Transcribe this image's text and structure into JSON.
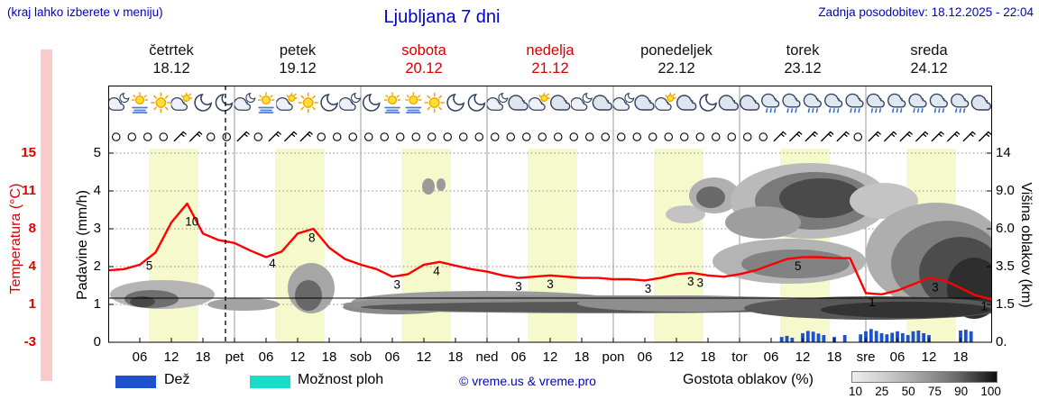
{
  "header": {
    "hint": "(kraj lahko izberete v meniju)",
    "title": "Ljubljana 7 dni",
    "updated": "Zadnja posodobitev: 18.12.2025 - 22:04"
  },
  "colors": {
    "accent_blue": "#0000cd",
    "temp_red": "#e00000",
    "temp_line": "#ff0000",
    "rain_blue": "#1d52cc",
    "showers_cyan": "#17dcc8",
    "day_band": "#f6f9cb",
    "holiday_red": "#d40000"
  },
  "axes": {
    "temp_label": "Temperatura (°C)",
    "temp_ticks": [
      "15",
      "11",
      "8",
      "4",
      "1",
      "-3"
    ],
    "temp_tick_values": [
      15,
      11,
      8,
      4,
      1,
      -3
    ],
    "precip_label": "Padavine (mm/h)",
    "precip_ticks": [
      "5",
      "4",
      "3",
      "2",
      "1",
      "0"
    ],
    "cloud_label": "Višina oblakov (km)",
    "cloud_ticks": [
      "14",
      "9.0",
      "6.0",
      "3.5",
      "1.5",
      "0."
    ]
  },
  "days": [
    {
      "name": "četrtek",
      "date": "18.12",
      "holiday": false
    },
    {
      "name": "petek",
      "date": "19.12",
      "holiday": false
    },
    {
      "name": "sobota",
      "date": "20.12",
      "holiday": true
    },
    {
      "name": "nedelja",
      "date": "21.12",
      "holiday": true
    },
    {
      "name": "ponedeljek",
      "date": "22.12",
      "holiday": false
    },
    {
      "name": "torek",
      "date": "23.12",
      "holiday": false
    },
    {
      "name": "sreda",
      "date": "24.12",
      "holiday": false
    }
  ],
  "xaxis": [
    "06",
    "12",
    "18",
    "pet",
    "06",
    "12",
    "18",
    "sob",
    "06",
    "12",
    "18",
    "ned",
    "06",
    "12",
    "18",
    "pon",
    "06",
    "12",
    "18",
    "tor",
    "06",
    "12",
    "18",
    "sre",
    "06",
    "12",
    "18"
  ],
  "legend": {
    "rain": "Dež",
    "showers": "Možnost ploh",
    "credit": "© vreme.us & vreme.pro",
    "cloud_density": "Gostota oblakov (%)",
    "density_ticks": [
      "10",
      "25",
      "50",
      "75",
      "90",
      "100"
    ]
  },
  "chart_data": {
    "type": "line",
    "title": "Ljubljana 7 dni",
    "x_hours_range": [
      0,
      168
    ],
    "precip_axis_range": [
      0,
      5
    ],
    "temp_axis_ticks_c": [
      15,
      11,
      8,
      4,
      1,
      -3
    ],
    "cloud_axis_ticks_km": [
      14,
      9.0,
      6.0,
      3.5,
      1.5,
      0
    ],
    "temperature": {
      "step_hours": 3,
      "values": [
        3.7,
        3.8,
        4.2,
        5.5,
        8.5,
        10,
        7.5,
        6.8,
        6.5,
        5.7,
        5.0,
        5.6,
        7.5,
        8.0,
        6.0,
        4.8,
        4.2,
        3.8,
        3.2,
        3.4,
        4.2,
        4.5,
        4.1,
        3.8,
        3.6,
        3.3,
        3.1,
        3.2,
        3.3,
        3.2,
        3.1,
        3.1,
        3.0,
        3.0,
        2.9,
        3.1,
        3.4,
        3.5,
        3.3,
        3.2,
        3.4,
        3.7,
        4.2,
        4.8,
        5.0,
        5.0,
        4.9,
        4.9,
        1.9,
        1.8,
        2.1,
        2.6,
        3.1,
        2.9,
        2.3,
        1.7,
        1.4
      ]
    },
    "temp_point_labels": [
      {
        "t": 2.6,
        "text": "5"
      },
      {
        "t": 5.3,
        "text": "10"
      },
      {
        "t": 10.4,
        "text": "4"
      },
      {
        "t": 12.9,
        "text": "8"
      },
      {
        "t": 18.3,
        "text": "3"
      },
      {
        "t": 20.8,
        "text": "4"
      },
      {
        "t": 26.0,
        "text": "3"
      },
      {
        "t": 28.0,
        "text": "3"
      },
      {
        "t": 34.2,
        "text": "3"
      },
      {
        "t": 36.9,
        "text": "3"
      },
      {
        "t": 37.5,
        "text": "3"
      },
      {
        "t": 43.7,
        "text": "5"
      },
      {
        "t": 48.4,
        "text": "1"
      },
      {
        "t": 52.4,
        "text": "3"
      },
      {
        "t": 55.5,
        "text": "1"
      }
    ],
    "precip_bars_mm": [
      [
        128,
        0.14
      ],
      [
        129,
        0.17
      ],
      [
        130,
        0.12
      ],
      [
        132,
        0.24
      ],
      [
        133,
        0.3
      ],
      [
        134,
        0.28
      ],
      [
        135,
        0.23
      ],
      [
        136,
        0.19
      ],
      [
        138,
        0.14
      ],
      [
        140,
        0.19
      ],
      [
        143,
        0.21
      ],
      [
        144,
        0.29
      ],
      [
        145,
        0.35
      ],
      [
        146,
        0.3
      ],
      [
        147,
        0.24
      ],
      [
        148,
        0.21
      ],
      [
        149,
        0.25
      ],
      [
        150,
        0.29
      ],
      [
        151,
        0.24
      ],
      [
        152,
        0.19
      ],
      [
        153,
        0.29
      ],
      [
        154,
        0.31
      ],
      [
        155,
        0.24
      ],
      [
        156,
        0.19
      ],
      [
        162,
        0.31
      ],
      [
        163,
        0.33
      ],
      [
        164,
        0.29
      ]
    ],
    "icons": [
      "cloud-moon",
      "fog-sun",
      "sun",
      "cloud-sun",
      "moon",
      "moon",
      "cloud-moon",
      "fog-sun",
      "cloud-sun",
      "sun",
      "moon",
      "cloud-moon",
      "moon",
      "fog-sun",
      "fog-sun",
      "sun",
      "moon",
      "moon",
      "cloud-moon",
      "cloud",
      "cloud-sun",
      "cloud",
      "cloud-moon",
      "cloud",
      "cloud-moon",
      "cloud",
      "cloud-sun",
      "cloud",
      "moon",
      "cloud",
      "cloud",
      "cloud-rain",
      "cloud-rain",
      "cloud-rain",
      "cloud-rain",
      "cloud-rain",
      "cloud-rain",
      "cloud-rain",
      "cloud-rain",
      "cloud-rain",
      "cloud-rain",
      "cloud"
    ],
    "wind": [
      "calm",
      "calm",
      "calm",
      "calm",
      "barb",
      "barb",
      "calm",
      "calm",
      "barb",
      "calm",
      "barb",
      "barb",
      "barb",
      "calm",
      "calm",
      "calm",
      "calm",
      "calm",
      "calm",
      "calm",
      "calm",
      "calm",
      "calm",
      "calm",
      "calm",
      "calm",
      "calm",
      "calm",
      "calm",
      "calm",
      "calm",
      "calm",
      "calm",
      "calm",
      "calm",
      "calm",
      "calm",
      "calm",
      "calm",
      "calm",
      "calm",
      "calm",
      "barb",
      "barb",
      "barb",
      "barb",
      "barb",
      "calm",
      "barb",
      "barb",
      "barb",
      "barb",
      "barb",
      "barb",
      "barb",
      "barb"
    ],
    "cloud_blobs": [
      [
        60,
        232,
        58,
        16,
        "#b4b4b4"
      ],
      [
        48,
        237,
        30,
        10,
        "#6e6e6e"
      ],
      [
        38,
        240,
        14,
        6,
        "#484848"
      ],
      [
        150,
        243,
        40,
        7,
        "#a3a3a3"
      ],
      [
        225,
        225,
        26,
        28,
        "#a6a6a6"
      ],
      [
        222,
        233,
        15,
        17,
        "#686868"
      ],
      [
        320,
        246,
        60,
        8,
        "#8a8a8a"
      ],
      [
        420,
        240,
        150,
        12,
        "#9c9c9c"
      ],
      [
        560,
        243,
        300,
        10,
        "#8f8f8f"
      ],
      [
        560,
        246,
        280,
        6,
        "#575757"
      ],
      [
        355,
        112,
        7,
        9,
        "#9a9a9a"
      ],
      [
        369,
        110,
        5,
        7,
        "#9a9a9a"
      ],
      [
        640,
        143,
        22,
        10,
        "#c2c2c2"
      ],
      [
        672,
        122,
        28,
        20,
        "#b0b0b0"
      ],
      [
        668,
        124,
        16,
        12,
        "#6a6a6a"
      ],
      [
        778,
        128,
        88,
        42,
        "#bababa"
      ],
      [
        783,
        128,
        66,
        32,
        "#7a7a7a"
      ],
      [
        790,
        125,
        46,
        22,
        "#4a4a4a"
      ],
      [
        726,
        152,
        42,
        18,
        "#9e9e9e"
      ],
      [
        755,
        195,
        85,
        25,
        "#b4b4b4"
      ],
      [
        762,
        198,
        60,
        16,
        "#828282"
      ],
      [
        860,
        128,
        38,
        20,
        "#c4c4c4"
      ],
      [
        918,
        188,
        78,
        58,
        "#aeaeae"
      ],
      [
        930,
        198,
        62,
        48,
        "#7e7e7e"
      ],
      [
        945,
        208,
        46,
        40,
        "#4c4c4c"
      ],
      [
        960,
        225,
        30,
        34,
        "#2e2e2e"
      ],
      [
        640,
        242,
        120,
        9,
        "#8e8e8e"
      ],
      [
        850,
        247,
        145,
        13,
        "#585858"
      ],
      [
        885,
        249,
        95,
        9,
        "#333333"
      ]
    ]
  }
}
